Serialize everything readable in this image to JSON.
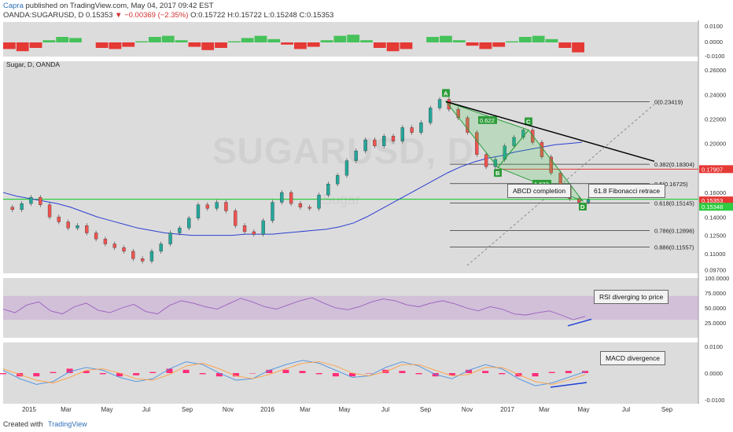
{
  "header": {
    "author": "Capra",
    "published": "published on TradingView.com, May 04, 2017 09:42 EST",
    "symbol_line": "OANDA:SUGARUSD, D  0.15353",
    "change": "▼ −0.00369 (−2.35%)",
    "ohlc": "O:0.15722 H:0.15722 L:0.15248 C:0.15353"
  },
  "footer": {
    "created_with": "Created with",
    "brand": "TradingView"
  },
  "watermark": {
    "main": "SUGARUSD, D",
    "sub": "Sugar"
  },
  "chart_data": {
    "type": "line",
    "title": "Sugar, D, OANDA",
    "colors": {
      "price_up": "#26a69a",
      "price_down": "#ef5350",
      "ma": "#2b3fd1",
      "rsi": "#9c5fbf",
      "macd": "#4a90e2",
      "signal": "#ff9f43",
      "hist": "#ff2d7a",
      "support": "#2ecc40",
      "resistance": "#e53935"
    },
    "x_ticks": [
      "2015",
      "Mar",
      "May",
      "Jul",
      "Sep",
      "Nov",
      "2016",
      "Mar",
      "May",
      "Jul",
      "Sep",
      "Nov",
      "2017",
      "Mar",
      "May",
      "Jul",
      "Sep"
    ],
    "price_axis": {
      "ticks": [
        "0.26000",
        "0.24000",
        "0.22000",
        "0.20000",
        "0.18000",
        "0.16000",
        "0.14000",
        "0.12500",
        "0.11000",
        "0.09700"
      ],
      "ylim": [
        0.094,
        0.262
      ],
      "markers": [
        {
          "label": "0.17907",
          "value": 0.17907,
          "color": "#e53935"
        },
        {
          "label": "0.15353",
          "value": 0.15353,
          "color": "#e53935"
        },
        {
          "label": "0.15348",
          "value": 0.15348,
          "color": "#2ecc40"
        }
      ]
    },
    "price_series": {
      "name": "SUGARUSD",
      "values": [
        0.148,
        0.146,
        0.151,
        0.156,
        0.15,
        0.14,
        0.136,
        0.131,
        0.133,
        0.127,
        0.122,
        0.118,
        0.115,
        0.112,
        0.106,
        0.104,
        0.112,
        0.118,
        0.127,
        0.131,
        0.139,
        0.15,
        0.147,
        0.152,
        0.145,
        0.133,
        0.128,
        0.126,
        0.137,
        0.152,
        0.16,
        0.151,
        0.148,
        0.147,
        0.158,
        0.167,
        0.174,
        0.186,
        0.194,
        0.203,
        0.198,
        0.206,
        0.202,
        0.213,
        0.209,
        0.217,
        0.229,
        0.236,
        0.228,
        0.221,
        0.209,
        0.191,
        0.181,
        0.187,
        0.198,
        0.205,
        0.211,
        0.201,
        0.189,
        0.176,
        0.165,
        0.155,
        0.152,
        0.154
      ]
    },
    "ma_series": {
      "values": [
        0.16,
        0.157,
        0.155,
        0.153,
        0.151,
        0.148,
        0.144,
        0.14,
        0.137,
        0.134,
        0.131,
        0.129,
        0.127,
        0.126,
        0.125,
        0.125,
        0.125,
        0.125,
        0.126,
        0.126,
        0.126,
        0.127,
        0.128,
        0.129,
        0.13,
        0.132,
        0.135,
        0.14,
        0.146,
        0.152,
        0.158,
        0.164,
        0.17,
        0.176,
        0.181,
        0.185,
        0.188,
        0.19,
        0.193,
        0.195,
        0.197,
        0.199,
        0.2,
        0.201
      ]
    },
    "fibonacci": [
      {
        "label": "0(0.23419)",
        "value": 0.23419
      },
      {
        "label": "0.382(0.18304)",
        "value": 0.18304
      },
      {
        "label": "0.5(0.16725)",
        "value": 0.16725
      },
      {
        "label": "0.618(0.15145)",
        "value": 0.15145
      },
      {
        "label": "0.786(0.12896)",
        "value": 0.12896
      },
      {
        "label": "0.886(0.11557)",
        "value": 0.11557
      }
    ],
    "abcd": {
      "points": {
        "A": 0.2342,
        "B": 0.1805,
        "C": 0.211,
        "D": 0.153
      },
      "ratios": [
        "0.622",
        "1.623"
      ]
    },
    "annotations": [
      "ABCD completion",
      "61.8 Fibonacci retrace",
      "RSI diverging to price",
      "MACD divergence"
    ],
    "oscillator_top": {
      "ticks": [
        "0.0100",
        "0.0000",
        "-0.0100"
      ],
      "values": [
        -0.6,
        -0.8,
        -0.5,
        0.2,
        0.5,
        0.4,
        0.0,
        -0.5,
        -0.6,
        -0.4,
        0.1,
        0.5,
        0.6,
        0.2,
        -0.4,
        -0.7,
        -0.5,
        0.1,
        0.4,
        0.6,
        0.3,
        -0.2,
        -0.6,
        -0.4,
        0.2,
        0.6,
        0.7,
        0.2,
        -0.5,
        -0.8,
        -0.6,
        0.0,
        0.5,
        0.6,
        0.2,
        -0.3,
        -0.6,
        -0.4,
        0.1,
        0.5,
        0.6,
        0.3,
        -0.5,
        -0.9
      ]
    },
    "rsi": {
      "ticks": [
        "100.0000",
        "75.0000",
        "50.0000",
        "25.0000"
      ],
      "band": [
        30,
        70
      ],
      "values": [
        48,
        42,
        55,
        60,
        45,
        40,
        52,
        58,
        46,
        42,
        50,
        56,
        44,
        40,
        54,
        62,
        58,
        52,
        48,
        57,
        66,
        60,
        52,
        48,
        55,
        62,
        67,
        58,
        50,
        47,
        52,
        60,
        65,
        62,
        55,
        52,
        58,
        62,
        57,
        50,
        45,
        52,
        48,
        40,
        38,
        42,
        45,
        38,
        30,
        36
      ]
    },
    "macd": {
      "ticks": [
        "0.0100",
        "0.0000",
        "-0.0100"
      ],
      "macd_values": [
        0.2,
        -0.4,
        -0.8,
        -0.6,
        0.1,
        0.4,
        0.2,
        -0.3,
        -0.6,
        -0.4,
        0.3,
        0.8,
        0.6,
        0.0,
        -0.5,
        -0.4,
        0.2,
        0.6,
        0.9,
        0.7,
        0.2,
        -0.3,
        -0.2,
        0.4,
        0.8,
        0.5,
        -0.1,
        -0.4,
        0.2,
        0.6,
        0.3,
        -0.4,
        -0.9,
        -0.7,
        -0.3,
        0.1
      ],
      "signal_values": [
        0.3,
        -0.1,
        -0.5,
        -0.7,
        -0.3,
        0.2,
        0.3,
        0.0,
        -0.4,
        -0.5,
        -0.1,
        0.5,
        0.7,
        0.3,
        -0.2,
        -0.4,
        -0.1,
        0.3,
        0.7,
        0.8,
        0.5,
        0.0,
        -0.2,
        0.1,
        0.6,
        0.6,
        0.2,
        -0.2,
        -0.1,
        0.4,
        0.4,
        -0.1,
        -0.6,
        -0.8,
        -0.5,
        -0.1
      ]
    }
  }
}
